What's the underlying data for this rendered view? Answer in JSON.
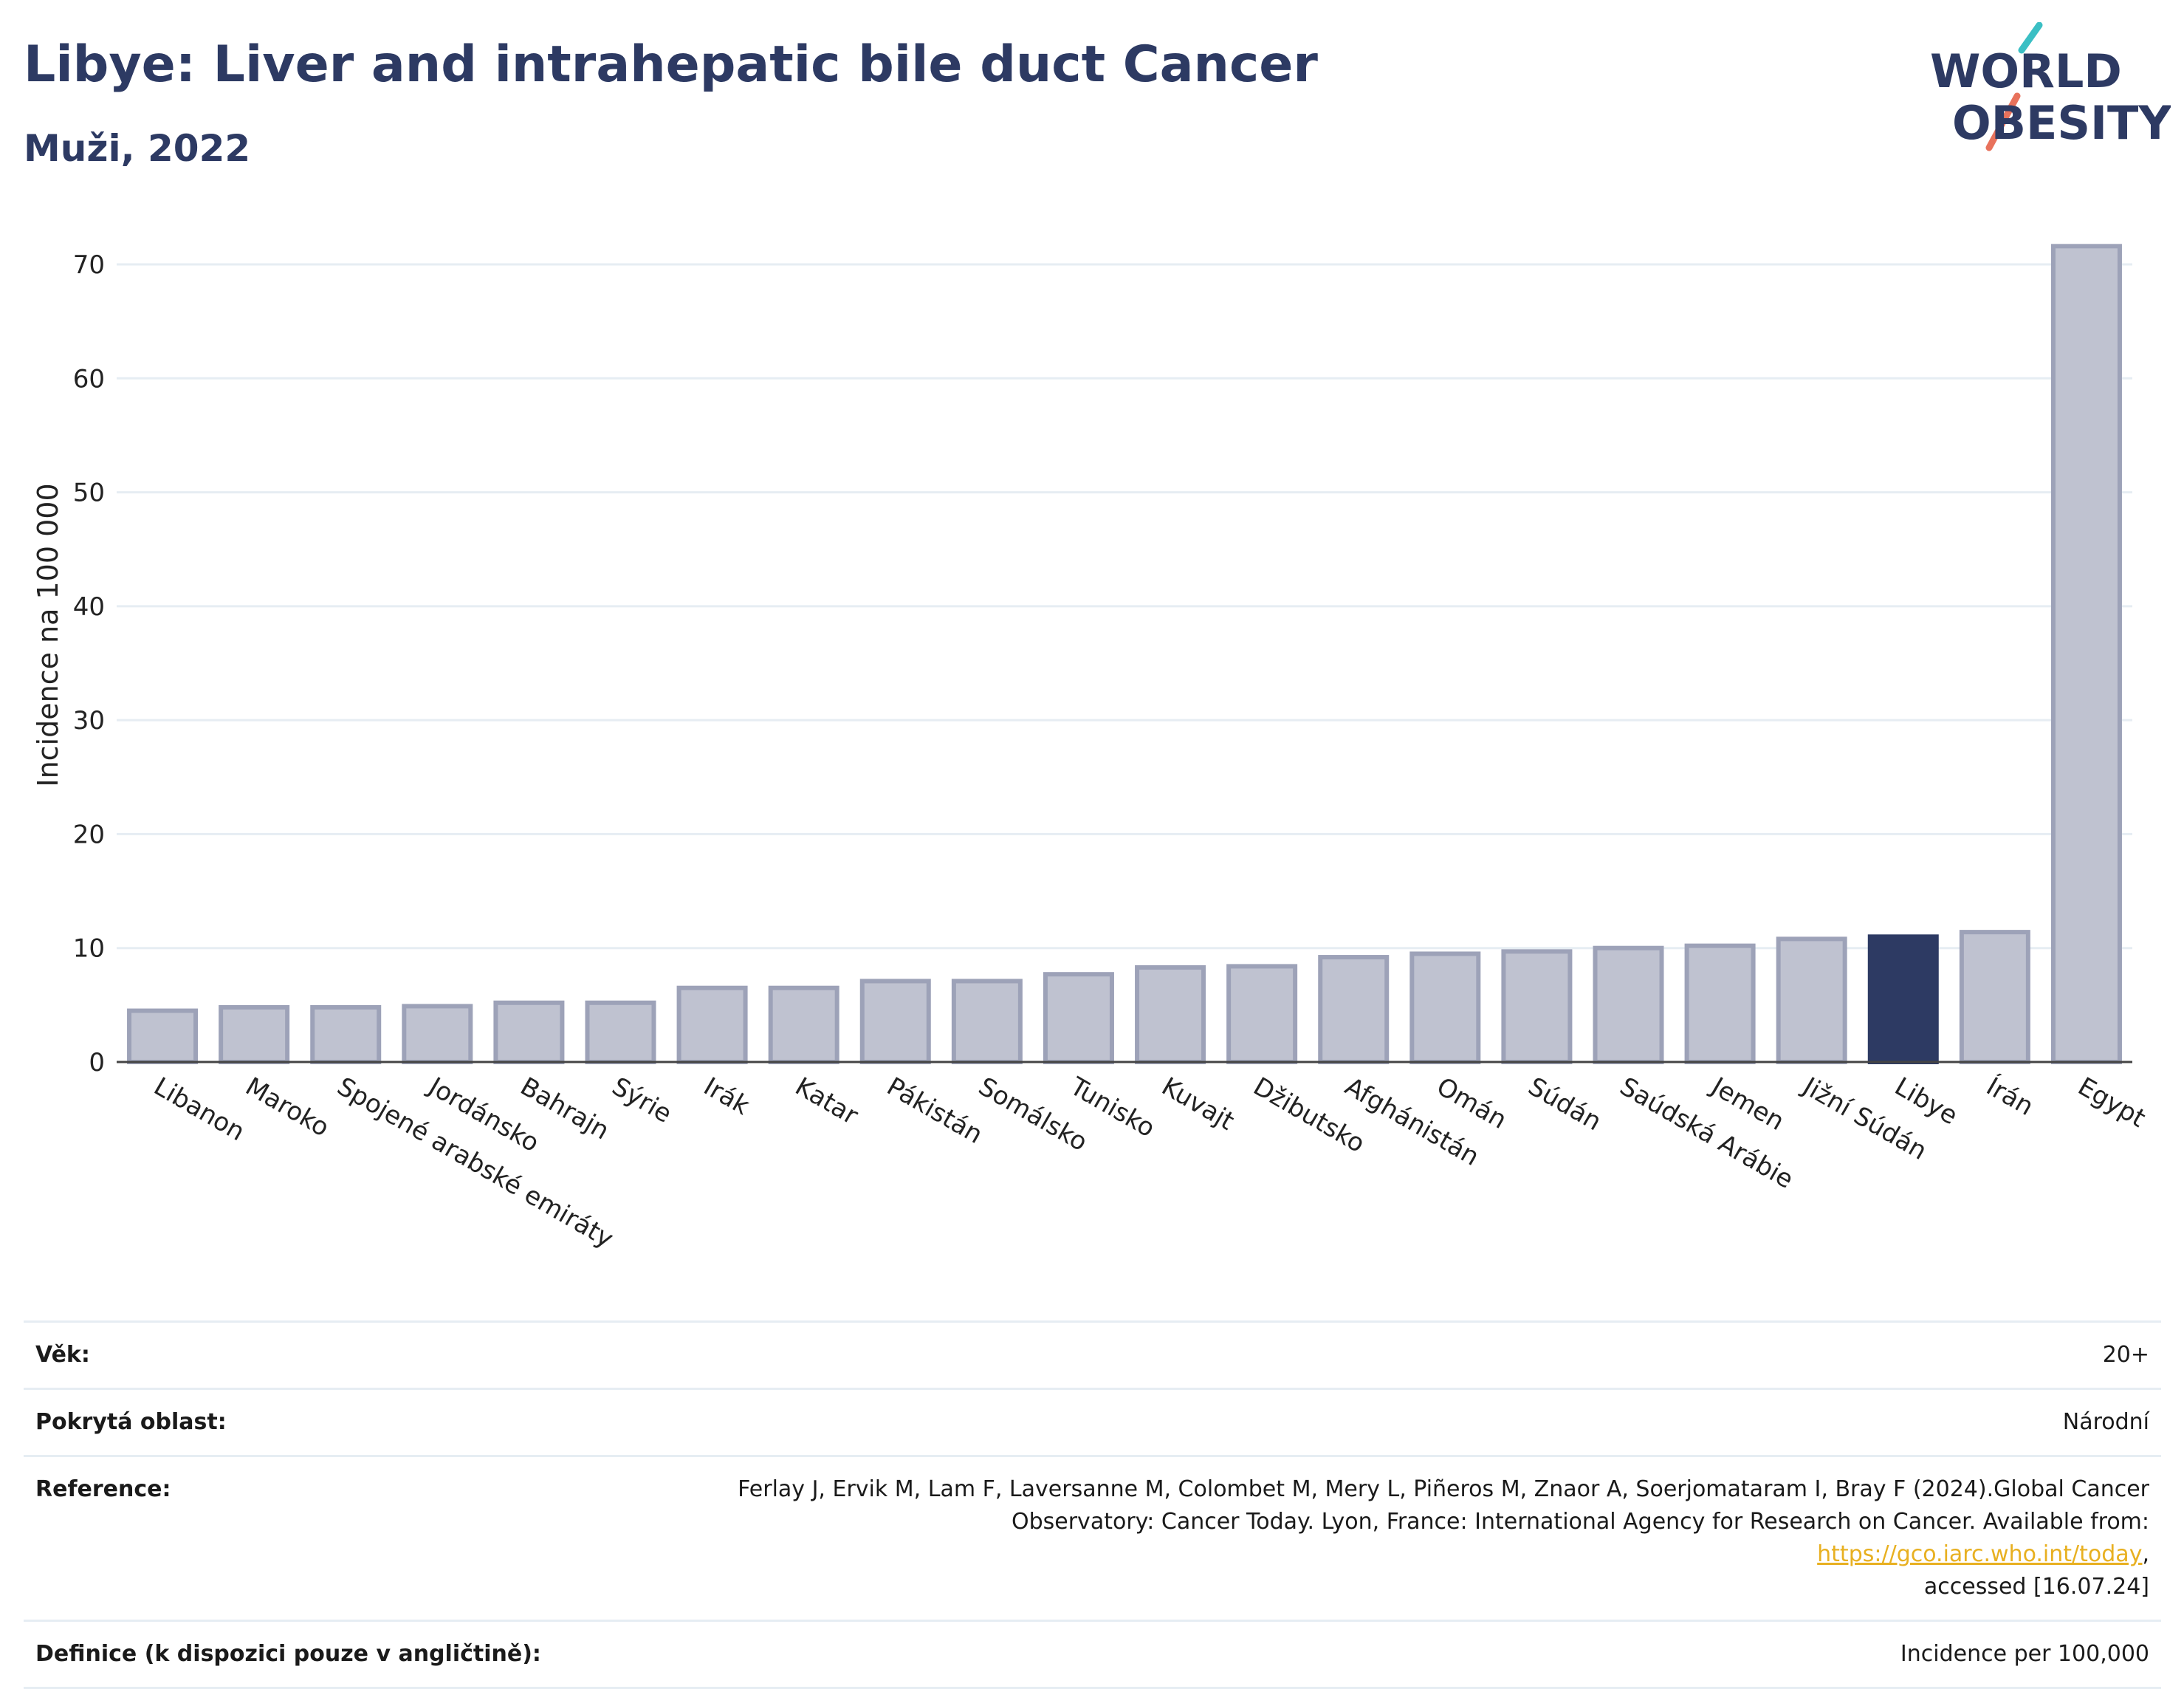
{
  "header": {
    "title": "Libye: Liver and intrahepatic bile duct Cancer",
    "subtitle": "Muži, 2022"
  },
  "logo": {
    "line1": "WORLD",
    "line2": "OBESITY",
    "slash_colors": [
      "#3bbfc4",
      "#e8725c"
    ],
    "text_color": "#2d3a63"
  },
  "chart_data": {
    "type": "bar",
    "title": "Libye: Liver and intrahepatic bile duct Cancer",
    "subtitle": "Muži, 2022",
    "ylabel": "Incidence na 100 000",
    "xlabel": "",
    "ylim": [
      0,
      72
    ],
    "yticks": [
      0,
      10,
      20,
      30,
      40,
      50,
      60,
      70
    ],
    "grid": true,
    "categories": [
      "Libanon",
      "Maroko",
      "Spojené arabské emiráty",
      "Jordánsko",
      "Bahrajn",
      "Sýrie",
      "Irák",
      "Katar",
      "Pákistán",
      "Somálsko",
      "Tunisko",
      "Kuvajt",
      "Džibutsko",
      "Afghánistán",
      "Omán",
      "Súdán",
      "Saúdská Arábie",
      "Jemen",
      "Jižní Súdán",
      "Libye",
      "Írán",
      "Egypt"
    ],
    "values": [
      4.5,
      4.8,
      4.8,
      4.9,
      5.2,
      5.2,
      6.5,
      6.5,
      7.1,
      7.1,
      7.7,
      8.3,
      8.4,
      9.2,
      9.5,
      9.7,
      10.0,
      10.2,
      10.8,
      11.0,
      11.4,
      71.6
    ],
    "highlight": "Libye",
    "colors": {
      "bar": "#bfc2d0",
      "bar_border": "#9da2b8",
      "highlight": "#2d3a63",
      "grid": "#e6edf3"
    }
  },
  "info": {
    "age_label": "Věk:",
    "age_value": "20+",
    "coverage_label": "Pokrytá oblast:",
    "coverage_value": "Národní",
    "reference_label": "Reference:",
    "reference_line1": "Ferlay J, Ervik M, Lam F, Laversanne M, Colombet M, Mery L, Piñeros M, Znaor A, Soerjomataram I, Bray F (2024).Global Cancer",
    "reference_line2_prefix": "Observatory: Cancer Today. Lyon, France: International Agency for Research on Cancer. Available from: ",
    "reference_link": "https://gco.iarc.who.int/today",
    "reference_line2_suffix": ",",
    "reference_line3": "accessed [16.07.24]",
    "definition_label": "Definice (k dispozici pouze v angličtině):",
    "definition_value": "Incidence per 100,000"
  }
}
